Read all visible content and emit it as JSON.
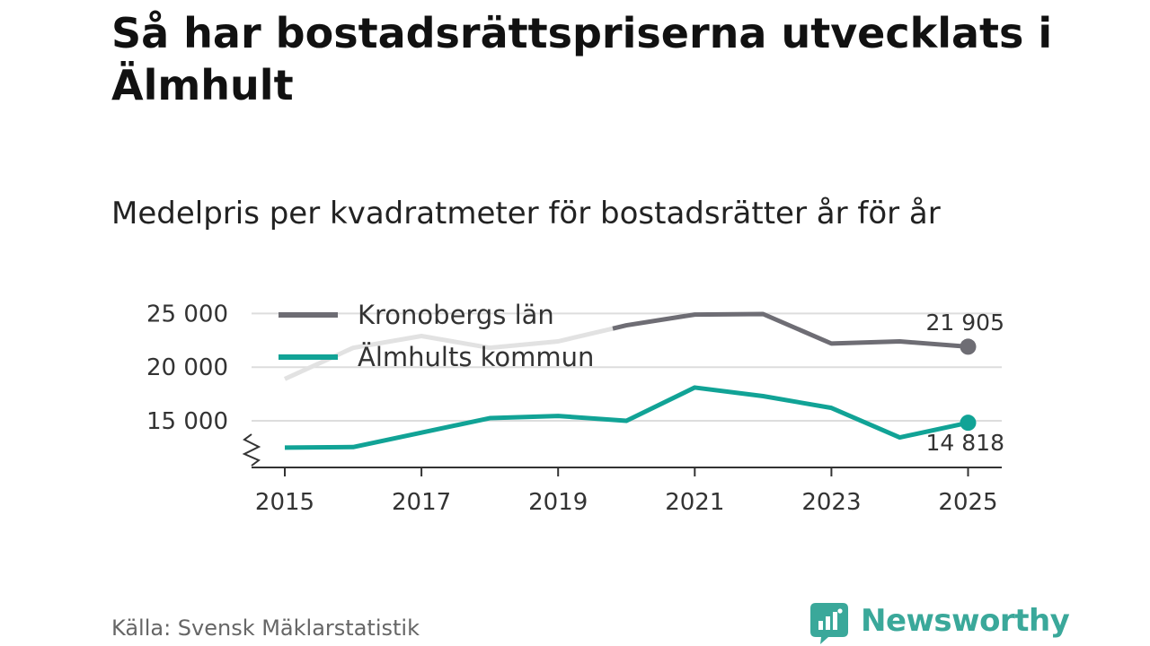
{
  "title": "Så har bostadsrättspriserna utvecklats i Älmhult",
  "subtitle": "Medelpris per kvadratmeter för bostadsrätter år för år",
  "source": "Källa: Svensk Mäklarstatistik",
  "brand": {
    "name": "Newsworthy",
    "icon": "newsworthy-logo-icon"
  },
  "colors": {
    "kronoberg": "#6e6d74",
    "almhult": "#11a396",
    "kronoberg_faded": "#e2e2e2",
    "grid": "#dddddd",
    "axis": "#333333"
  },
  "chart_data": {
    "type": "line",
    "title": "Medelpris per kvadratmeter för bostadsrätter år för år",
    "xlabel": "",
    "ylabel": "",
    "x": [
      2015,
      2016,
      2017,
      2018,
      2019,
      2020,
      2021,
      2022,
      2023,
      2024,
      2025
    ],
    "xticks": [
      "2015",
      "2017",
      "2019",
      "2021",
      "2023",
      "2025"
    ],
    "yticks": [
      {
        "value": 15000,
        "label": "15 000"
      },
      {
        "value": 20000,
        "label": "20 000"
      },
      {
        "value": 25000,
        "label": "25 000"
      }
    ],
    "xlim": [
      2014.7,
      2025.5
    ],
    "ylim": [
      11000,
      26000
    ],
    "axis_break": true,
    "legend_position": "top-left",
    "series": [
      {
        "name": "Kronobergs län",
        "key": "kronoberg",
        "values": [
          18900,
          21800,
          22900,
          21800,
          22400,
          23900,
          24900,
          24950,
          22200,
          22400,
          21905
        ],
        "faded_before": 2019.8,
        "end_label": "21 905"
      },
      {
        "name": "Älmhults kommun",
        "key": "almhult",
        "values": [
          12500,
          12550,
          13900,
          15250,
          15450,
          15000,
          18100,
          17300,
          16200,
          13450,
          14818
        ],
        "end_label": "14 818"
      }
    ]
  }
}
